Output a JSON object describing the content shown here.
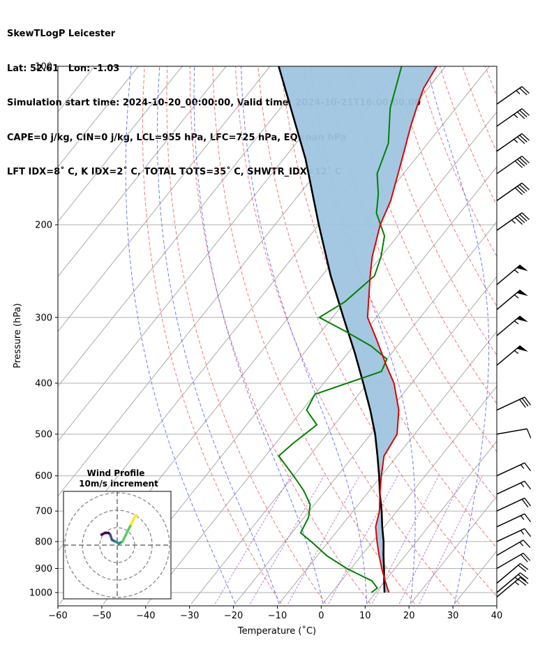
{
  "header": {
    "line1": "SkewTLogP Leicester",
    "line2": "Lat: 52.61   Lon: -1.03",
    "line3": "Simulation start time: 2024-10-20_00:00:00, Valid time: 2024-10-21T16:00:00.00",
    "line4": "CAPE=0 j/kg, CIN=0 j/kg, LCL=955 hPa, LFC=725 hPa, EQ=nan hPa",
    "line5": "LFT IDX=8˚ C, K IDX=2˚ C, TOTAL TOTS=35˚ C, SHWTR_IDX=12˚ C"
  },
  "chart_data": [
    {
      "type": "line",
      "subtype": "skew-t log-p",
      "xlabel": "Temperature (˚C)",
      "ylabel": "Pressure (hPa)",
      "xlim": [
        -60,
        40
      ],
      "ylim": [
        1050,
        100
      ],
      "y_scale": "log",
      "x_ticks": [
        "−60",
        "−50",
        "−40",
        "−30",
        "−20",
        "−10",
        "0",
        "10",
        "20",
        "30",
        "40"
      ],
      "y_ticks": [
        "100",
        "200",
        "300",
        "400",
        "500",
        "600",
        "700",
        "800",
        "900",
        "1000"
      ],
      "grid": true,
      "series": [
        {
          "role": "temperature",
          "color": "#e00000",
          "points": [
            [
              1000,
              13
            ],
            [
              950,
              10
            ],
            [
              900,
              7
            ],
            [
              850,
              4
            ],
            [
              800,
              1
            ],
            [
              750,
              -2
            ],
            [
              700,
              -4
            ],
            [
              650,
              -7
            ],
            [
              600,
              -10
            ],
            [
              550,
              -13
            ],
            [
              500,
              -14
            ],
            [
              450,
              -18
            ],
            [
              400,
              -24
            ],
            [
              370,
              -29
            ],
            [
              330,
              -36
            ],
            [
              300,
              -42
            ],
            [
              250,
              -49
            ],
            [
              230,
              -52
            ],
            [
              200,
              -56
            ],
            [
              180,
              -58
            ],
            [
              150,
              -63
            ],
            [
              130,
              -67
            ],
            [
              120,
              -69
            ],
            [
              110,
              -71
            ],
            [
              100,
              -72
            ]
          ]
        },
        {
          "role": "dewpoint",
          "color": "#008000",
          "points": [
            [
              1000,
              9
            ],
            [
              980,
              9.5
            ],
            [
              950,
              7
            ],
            [
              900,
              -1
            ],
            [
              850,
              -8
            ],
            [
              800,
              -14
            ],
            [
              770,
              -18
            ],
            [
              720,
              -19
            ],
            [
              680,
              -21
            ],
            [
              640,
              -25
            ],
            [
              600,
              -30
            ],
            [
              550,
              -37
            ],
            [
              520,
              -36
            ],
            [
              480,
              -34
            ],
            [
              450,
              -39
            ],
            [
              420,
              -40
            ],
            [
              380,
              -29
            ],
            [
              360,
              -30
            ],
            [
              340,
              -36
            ],
            [
              320,
              -44
            ],
            [
              300,
              -53
            ],
            [
              280,
              -50
            ],
            [
              250,
              -48
            ],
            [
              230,
              -50
            ],
            [
              210,
              -53
            ],
            [
              190,
              -59
            ],
            [
              175,
              -62
            ],
            [
              160,
              -66
            ],
            [
              140,
              -69
            ],
            [
              120,
              -75
            ],
            [
              100,
              -80
            ]
          ]
        },
        {
          "role": "parcel",
          "color": "#000000",
          "points": [
            [
              1000,
              12
            ],
            [
              955,
              10
            ],
            [
              900,
              7.5
            ],
            [
              850,
              5
            ],
            [
              800,
              2.5
            ],
            [
              750,
              -0.5
            ],
            [
              700,
              -3.5
            ],
            [
              650,
              -7
            ],
            [
              600,
              -10.5
            ],
            [
              550,
              -14.5
            ],
            [
              500,
              -19
            ],
            [
              450,
              -24.5
            ],
            [
              400,
              -31
            ],
            [
              350,
              -38.5
            ],
            [
              300,
              -47.5
            ],
            [
              250,
              -58
            ],
            [
              200,
              -70
            ],
            [
              150,
              -85
            ],
            [
              100,
              -108
            ]
          ]
        }
      ],
      "shaded_region": {
        "between": [
          "parcel",
          "temperature"
        ],
        "color": "#9fc5e0"
      },
      "dry_adiabats_theta_K": [
        260,
        270,
        280,
        290,
        300,
        310,
        320,
        330,
        340,
        350,
        360,
        370,
        380,
        390,
        400,
        410,
        420,
        430,
        440,
        450,
        460
      ],
      "moist_adiabats_C": [
        -20,
        -10,
        0,
        10,
        20,
        30,
        40
      ],
      "mixing_ratios": [
        0.5,
        1,
        2,
        4,
        8,
        12,
        16
      ],
      "wind_barbs": [
        {
          "p": 1020,
          "speed_kt": 25,
          "dir": 230
        },
        {
          "p": 1000,
          "speed_kt": 25,
          "dir": 230
        },
        {
          "p": 960,
          "speed_kt": 20,
          "dir": 230
        },
        {
          "p": 900,
          "speed_kt": 20,
          "dir": 240
        },
        {
          "p": 850,
          "speed_kt": 15,
          "dir": 240
        },
        {
          "p": 800,
          "speed_kt": 15,
          "dir": 245
        },
        {
          "p": 750,
          "speed_kt": 15,
          "dir": 245
        },
        {
          "p": 700,
          "speed_kt": 20,
          "dir": 245
        },
        {
          "p": 650,
          "speed_kt": 15,
          "dir": 245
        },
        {
          "p": 600,
          "speed_kt": 15,
          "dir": 245
        },
        {
          "p": 500,
          "speed_kt": 10,
          "dir": 260
        },
        {
          "p": 450,
          "speed_kt": 30,
          "dir": 245
        },
        {
          "p": 370,
          "speed_kt": 55,
          "dir": 230
        },
        {
          "p": 325,
          "speed_kt": 55,
          "dir": 230
        },
        {
          "p": 290,
          "speed_kt": 55,
          "dir": 230
        },
        {
          "p": 260,
          "speed_kt": 55,
          "dir": 230
        },
        {
          "p": 205,
          "speed_kt": 45,
          "dir": 235
        },
        {
          "p": 180,
          "speed_kt": 40,
          "dir": 235
        },
        {
          "p": 160,
          "speed_kt": 40,
          "dir": 235
        },
        {
          "p": 145,
          "speed_kt": 35,
          "dir": 235
        },
        {
          "p": 130,
          "speed_kt": 35,
          "dir": 235
        },
        {
          "p": 118,
          "speed_kt": 25,
          "dir": 235
        }
      ]
    },
    {
      "type": "line",
      "subtype": "hodograph",
      "title": "Wind Profile",
      "subtitle": "10m/s increment",
      "rings": [
        1,
        2,
        3
      ],
      "path_uv": [
        [
          -9,
          6
        ],
        [
          -7,
          7
        ],
        [
          -5,
          7
        ],
        [
          -4,
          6
        ],
        [
          -3,
          3
        ],
        [
          -1,
          2
        ],
        [
          1,
          1
        ],
        [
          3,
          2
        ],
        [
          5,
          6
        ],
        [
          8,
          12
        ],
        [
          10,
          16
        ],
        [
          11,
          17
        ]
      ],
      "colormap": [
        "#440154",
        "#3b528b",
        "#21918c",
        "#5ec962",
        "#fde725"
      ]
    }
  ]
}
